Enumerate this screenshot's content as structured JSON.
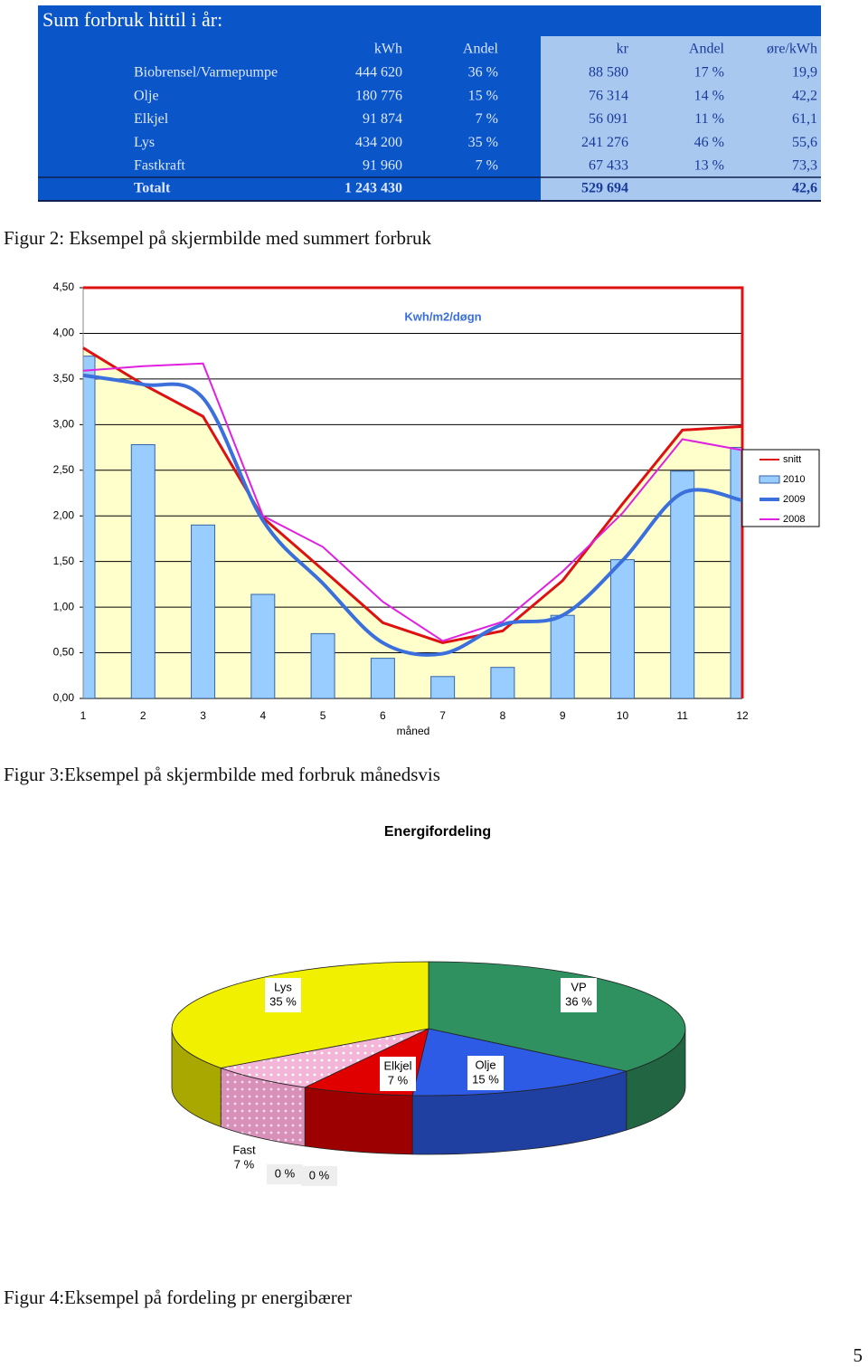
{
  "table": {
    "title": "Sum forbruk hittil i år:",
    "header": [
      "kWh",
      "Andel",
      "kr",
      "Andel",
      "øre/kWh"
    ],
    "rows": [
      [
        "Biobrensel/Varmepumpe",
        "444 620",
        "36 %",
        "88 580",
        "17 %",
        "19,9"
      ],
      [
        "Olje",
        "180 776",
        "15 %",
        "76 314",
        "14 %",
        "42,2"
      ],
      [
        "Elkjel",
        "91 874",
        "7 %",
        "56 091",
        "11 %",
        "61,1"
      ],
      [
        "Lys",
        "434 200",
        "35 %",
        "241 276",
        "46 %",
        "55,6"
      ],
      [
        "Fastkraft",
        "91 960",
        "7 %",
        "67 433",
        "13 %",
        "73,3"
      ]
    ],
    "total": {
      "label": "Totalt",
      "kwh": "1 243 430",
      "kr": "529 694",
      "ore": "42,6"
    }
  },
  "captions": [
    "Figur 2: Eksempel på skjermbilde med summert forbruk",
    "Figur 3:Eksempel på skjermbilde med forbruk månedsvis",
    "Figur 4:Eksempel på fordeling pr energibærer"
  ],
  "page_number": "5",
  "chart_data": [
    {
      "type": "bar-line",
      "title": "Kwh/m2/døgn",
      "x_label": "måned",
      "categories": [
        "1",
        "2",
        "3",
        "4",
        "5",
        "6",
        "7",
        "8",
        "9",
        "10",
        "11",
        "12"
      ],
      "ylim": [
        0,
        4.5
      ],
      "yticks": [
        {
          "value": 0,
          "label": "0,00"
        },
        {
          "value": 0.5,
          "label": "0,50"
        },
        {
          "value": 1,
          "label": "1,00"
        },
        {
          "value": 1.5,
          "label": "1,50"
        },
        {
          "value": 2,
          "label": "2,00"
        },
        {
          "value": 2.5,
          "label": "2,50"
        },
        {
          "value": 3,
          "label": "3,00"
        },
        {
          "value": 3.5,
          "label": "3,50"
        },
        {
          "value": 4,
          "label": "4,00"
        },
        {
          "value": 4.5,
          "label": "4,50"
        }
      ],
      "grid": true,
      "legend": "right",
      "series": [
        {
          "name": "snitt",
          "kind": "line",
          "color": "#dd1111",
          "values": [
            3.84,
            3.44,
            3.09,
            1.98,
            1.41,
            0.83,
            0.61,
            0.74,
            1.29,
            2.13,
            2.94,
            2.98
          ]
        },
        {
          "name": "2010",
          "kind": "bar",
          "color": "#99ccff",
          "values": [
            3.75,
            2.78,
            1.9,
            1.14,
            0.71,
            0.44,
            0.24,
            0.34,
            0.91,
            1.52,
            2.49,
            2.75
          ]
        },
        {
          "name": "2009",
          "kind": "smooth",
          "color": "#3a6fdc",
          "values": [
            3.54,
            3.44,
            3.29,
            1.95,
            1.26,
            0.61,
            0.49,
            0.81,
            0.91,
            1.51,
            2.25,
            2.17
          ]
        },
        {
          "name": "2008",
          "kind": "line",
          "color": "#e020e0",
          "values": [
            3.59,
            3.64,
            3.67,
            2.0,
            1.66,
            1.06,
            0.63,
            0.84,
            1.39,
            2.03,
            2.84,
            2.72
          ]
        }
      ]
    },
    {
      "type": "pie3d",
      "title": "Energifordeling",
      "categories": [
        "VP",
        "Olje",
        "Elkjel",
        "Fast",
        null,
        null,
        "Lys"
      ],
      "values": [
        36,
        15,
        7,
        7,
        0,
        0,
        35
      ],
      "value_labels": [
        "36 %",
        "15 %",
        "7 %",
        "7 %",
        "0 %",
        "0 %",
        "35 %"
      ],
      "colors": [
        "#2f9060",
        "#2e5be6",
        "#e00000",
        "#f4b6d8",
        "#cccccc",
        "#cccccc",
        "#f0f000"
      ]
    }
  ]
}
